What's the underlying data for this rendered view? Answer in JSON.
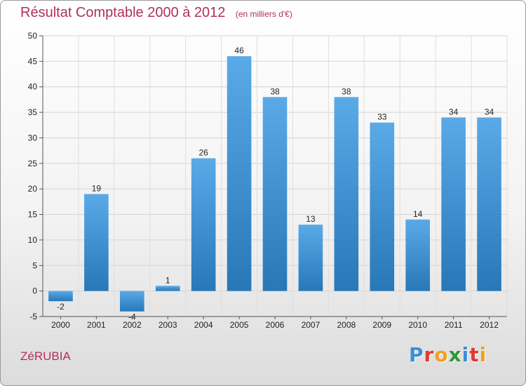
{
  "header": {
    "title": "Résultat Comptable 2000 à 2012",
    "subtitle": "(en milliers d'€)"
  },
  "footer": {
    "town": "ZéRUBIA",
    "logo_letters": [
      "P",
      "r",
      "o",
      "x",
      "i",
      "t",
      "i"
    ],
    "logo_colors": [
      "#3a8fd8",
      "#e23a2e",
      "#f0a020",
      "#2a9a3a",
      "#3a8fd8",
      "#e23a2e",
      "#f0a020"
    ]
  },
  "chart_data": {
    "type": "bar",
    "title": "Résultat Comptable 2000 à 2012",
    "subtitle": "(en milliers d'€)",
    "xlabel": "",
    "ylabel": "",
    "categories": [
      "2000",
      "2001",
      "2002",
      "2003",
      "2004",
      "2005",
      "2006",
      "2007",
      "2008",
      "2009",
      "2010",
      "2011",
      "2012"
    ],
    "values": [
      -2,
      19,
      -4,
      1,
      26,
      46,
      38,
      13,
      38,
      33,
      14,
      34,
      34
    ],
    "data_labels": [
      "-2",
      "19",
      "-4",
      "1",
      "26",
      "46",
      "38",
      "13",
      "38",
      "33",
      "14",
      "34",
      "34"
    ],
    "ylim": [
      -5,
      50
    ],
    "yticks": [
      -5,
      0,
      5,
      10,
      15,
      20,
      25,
      30,
      35,
      40,
      45,
      50
    ],
    "grid": true,
    "bar_color_top": "#5aaae8",
    "bar_color_bottom": "#2878b8"
  }
}
